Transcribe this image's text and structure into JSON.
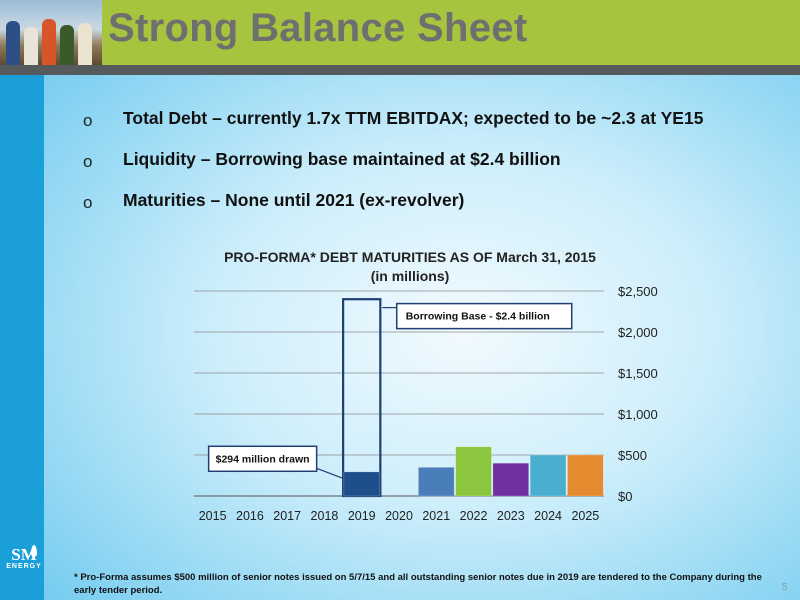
{
  "slide": {
    "title": "Strong Balance Sheet",
    "page_number": "5",
    "logo_text": "SM",
    "logo_subtext": "ENERGY"
  },
  "bullets": [
    {
      "mark": "o",
      "text": "Total Debt – currently 1.7x TTM EBITDAX; expected to be ~2.3 at YE15"
    },
    {
      "mark": "o",
      "text": "Liquidity – Borrowing base maintained at $2.4 billion"
    },
    {
      "mark": "o",
      "text": "Maturities – None until 2021 (ex-revolver)"
    }
  ],
  "chart_data": {
    "type": "bar",
    "title": "PRO-FORMA* DEBT MATURITIES AS OF March 31, 2015",
    "subtitle": "(in millions)",
    "categories": [
      "2015",
      "2016",
      "2017",
      "2018",
      "2019",
      "2020",
      "2021",
      "2022",
      "2023",
      "2024",
      "2025"
    ],
    "values": [
      0,
      0,
      0,
      0,
      294,
      0,
      350,
      600,
      400,
      500,
      500
    ],
    "bar_colors": [
      "#1f4e8c",
      "#1f4e8c",
      "#1f4e8c",
      "#1f4e8c",
      "#1f4e8c",
      "#1f4e8c",
      "#4a7ebb",
      "#8cc63f",
      "#7030a0",
      "#4aaed0",
      "#e58a2e"
    ],
    "borrowing_base": {
      "category": "2019",
      "value": 2400
    },
    "ylim": [
      0,
      2500
    ],
    "yticks": [
      0,
      500,
      1000,
      1500,
      2000,
      2500
    ],
    "ytick_labels": [
      "$0",
      "$500",
      "$1,000",
      "$1,500",
      "$2,000",
      "$2,500"
    ],
    "y_axis_side": "right",
    "grid": true,
    "annotations": [
      {
        "text": "Borrowing Base - $2.4 billion",
        "category": "2019",
        "value": 2200
      },
      {
        "text": "$294 million drawn",
        "category": "2019",
        "value": 460
      }
    ]
  },
  "footnote": "* Pro-Forma assumes $500 million of senior notes issued on 5/7/15 and all outstanding senior notes due in 2019 are tendered to the Company during the early tender period."
}
